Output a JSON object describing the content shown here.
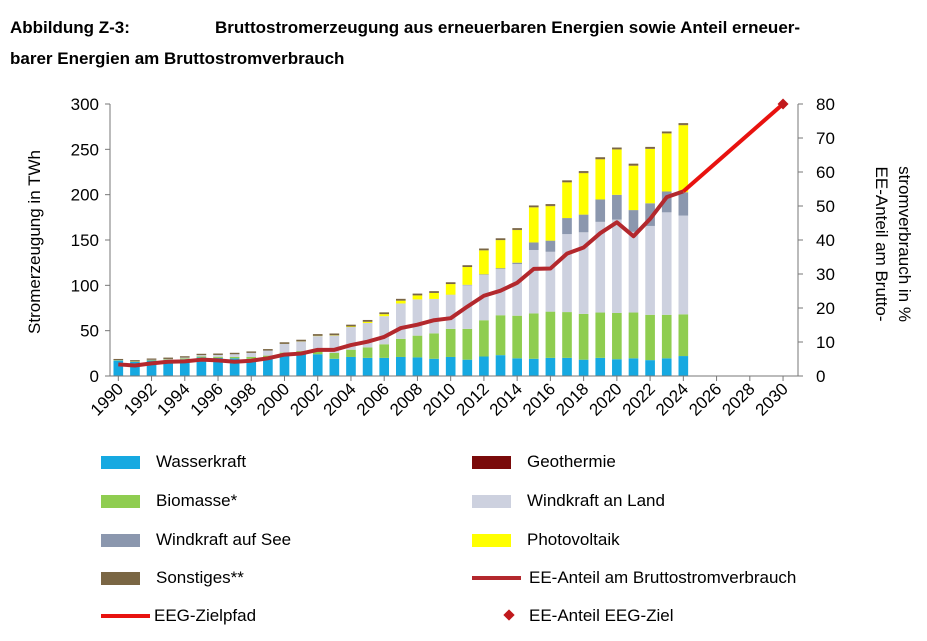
{
  "title": {
    "label": "Abbildung Z-3:",
    "line1": "Bruttostromerzeugung aus erneuerbaren Energien sowie Anteil erneuer-",
    "line2": "barer Energien am Bruttostromverbrauch"
  },
  "colors": {
    "Wasserkraft": "#16a9e1",
    "Geothermie": "#7a0a0a",
    "Biomasse*": "#8fcd50",
    "Windkraft an Land": "#cdd1df",
    "Windkraft auf See": "#8b97ae",
    "Photovoltaik": "#ffff00",
    "Sonstiges**": "#7a6644",
    "EE-Anteil am Bruttostromverbrauch": "#b3282d",
    "EEG-Zielpfad": "#e8120f",
    "EE-Anteil EEG-Ziel": "#c0191c"
  },
  "chart_data": {
    "type": "bar",
    "stacked": true,
    "xlabel": "",
    "ylabel": "Stromerzeugung in TWh",
    "ylabel_right": "EE-Anteil am Brutto-stromverbrauch in %",
    "ylabel_right_lines": [
      "EE-Anteil am Brutto-",
      "stromverbrauch in %"
    ],
    "ylim": [
      0,
      300
    ],
    "ylim_right": [
      0,
      80
    ],
    "yticks": [
      0,
      50,
      100,
      150,
      200,
      250,
      300
    ],
    "yticks_right": [
      0,
      10,
      20,
      30,
      40,
      50,
      60,
      70,
      80
    ],
    "xticks": [
      "1990",
      "1992",
      "1994",
      "1996",
      "1998",
      "2000",
      "2002",
      "2004",
      "2006",
      "2008",
      "2010",
      "2012",
      "2014",
      "2016",
      "2018",
      "2020",
      "2022",
      "2024",
      "2026",
      "2028",
      "2030"
    ],
    "grid": false,
    "years": [
      1990,
      1991,
      1992,
      1993,
      1994,
      1995,
      1996,
      1997,
      1998,
      1999,
      2000,
      2001,
      2002,
      2003,
      2004,
      2005,
      2006,
      2007,
      2008,
      2009,
      2010,
      2011,
      2012,
      2013,
      2014,
      2015,
      2016,
      2017,
      2018,
      2019,
      2020,
      2021,
      2022,
      2023,
      2024
    ],
    "series": [
      {
        "name": "Wasserkraft",
        "values": [
          17,
          15.5,
          17,
          17.5,
          18.5,
          20.5,
          20,
          19.5,
          19,
          20.5,
          23,
          24.5,
          24,
          19,
          21,
          20,
          20,
          21,
          20.5,
          19,
          21,
          18,
          21.5,
          23,
          19.5,
          19,
          20,
          20,
          18,
          20,
          18.5,
          19.5,
          17.5,
          19.5,
          22
        ]
      },
      {
        "name": "Biomasse*",
        "values": [
          0.5,
          0.5,
          0.6,
          0.7,
          0.9,
          1,
          1.2,
          1.5,
          2,
          2,
          2.8,
          3,
          4,
          6.5,
          8,
          11.5,
          15,
          20,
          24,
          28,
          31,
          34,
          40,
          44,
          47,
          50,
          51,
          50.5,
          50.5,
          50,
          51,
          50.5,
          50,
          48,
          46
        ]
      },
      {
        "name": "Windkraft an Land",
        "values": [
          0.1,
          0.2,
          0.3,
          0.6,
          0.9,
          1.5,
          2,
          3,
          4.5,
          5.5,
          9.5,
          10.5,
          16,
          19,
          25,
          27,
          31,
          39,
          40,
          38,
          37.5,
          48,
          50,
          51,
          57,
          70,
          66,
          86,
          90,
          100,
          103,
          89,
          98,
          113,
          109
        ]
      },
      {
        "name": "Windkraft auf See",
        "values": [
          0,
          0,
          0,
          0,
          0,
          0,
          0,
          0,
          0,
          0,
          0,
          0,
          0,
          0,
          0,
          0,
          0,
          0,
          0,
          0,
          0.2,
          0.6,
          0.7,
          0.9,
          1.5,
          8.3,
          12.3,
          17.7,
          19.5,
          24.7,
          27.3,
          24,
          25,
          23,
          25.7
        ]
      },
      {
        "name": "Photovoltaik",
        "values": [
          0,
          0,
          0,
          0,
          0,
          0,
          0,
          0,
          0,
          0,
          0.1,
          0.2,
          0.3,
          0.4,
          0.6,
          1.3,
          2.2,
          3.1,
          4.4,
          6.6,
          11.7,
          19.6,
          26.4,
          31,
          36,
          38.7,
          38.1,
          39.4,
          45.8,
          44.4,
          50,
          49,
          60,
          64,
          74
        ]
      },
      {
        "name": "Geothermie",
        "values": [
          0,
          0,
          0,
          0,
          0,
          0,
          0,
          0,
          0,
          0,
          0,
          0,
          0,
          0,
          0,
          0,
          0,
          0,
          0,
          0,
          0,
          0,
          0,
          0,
          0.1,
          0.1,
          0.2,
          0.2,
          0.2,
          0.2,
          0.2,
          0.2,
          0.2,
          0.2,
          0.2
        ]
      },
      {
        "name": "Sonstiges**",
        "values": [
          1.2,
          1.3,
          1.4,
          1.5,
          1.5,
          1.5,
          1.6,
          1.6,
          1.6,
          1.7,
          1.8,
          1.8,
          1.9,
          2,
          2,
          2,
          2,
          2,
          2,
          2,
          2,
          2,
          2,
          2,
          2,
          2,
          2,
          2,
          2,
          2,
          2,
          2,
          2,
          2,
          2
        ]
      }
    ],
    "lines": [
      {
        "name": "EE-Anteil am Bruttostromverbrauch",
        "axis": "right",
        "x": [
          1990,
          1991,
          1992,
          1993,
          1994,
          1995,
          1996,
          1997,
          1998,
          1999,
          2000,
          2001,
          2002,
          2003,
          2004,
          2005,
          2006,
          2007,
          2008,
          2009,
          2010,
          2011,
          2012,
          2013,
          2014,
          2015,
          2016,
          2017,
          2018,
          2019,
          2020,
          2021,
          2022,
          2023,
          2024
        ],
        "values": [
          3.4,
          3.1,
          3.7,
          4.2,
          4.3,
          4.8,
          4.6,
          4.2,
          4.5,
          5.2,
          6.3,
          6.6,
          7.7,
          7.7,
          9.1,
          10.1,
          11.5,
          14.1,
          15.1,
          16.4,
          17,
          20.4,
          23.6,
          25.1,
          27.4,
          31.5,
          31.6,
          36,
          37.8,
          42,
          45.2,
          41.1,
          46.2,
          52.6,
          54.3
        ]
      },
      {
        "name": "EEG-Zielpfad",
        "axis": "right",
        "x": [
          2024,
          2030
        ],
        "values": [
          54.3,
          80
        ]
      }
    ],
    "points": [
      {
        "name": "EE-Anteil EEG-Ziel",
        "axis": "right",
        "x": 2030,
        "value": 80
      }
    ]
  },
  "legend": {
    "items": [
      {
        "label": "Wasserkraft"
      },
      {
        "label": "Geothermie"
      },
      {
        "label": "Biomasse*"
      },
      {
        "label": "Windkraft an Land"
      },
      {
        "label": "Windkraft auf See"
      },
      {
        "label": "Photovoltaik"
      },
      {
        "label": "Sonstiges**"
      },
      {
        "label": "EE-Anteil am Bruttostromverbrauch"
      },
      {
        "label": "EEG-Zielpfad"
      },
      {
        "label": "EE-Anteil EEG-Ziel"
      }
    ]
  }
}
